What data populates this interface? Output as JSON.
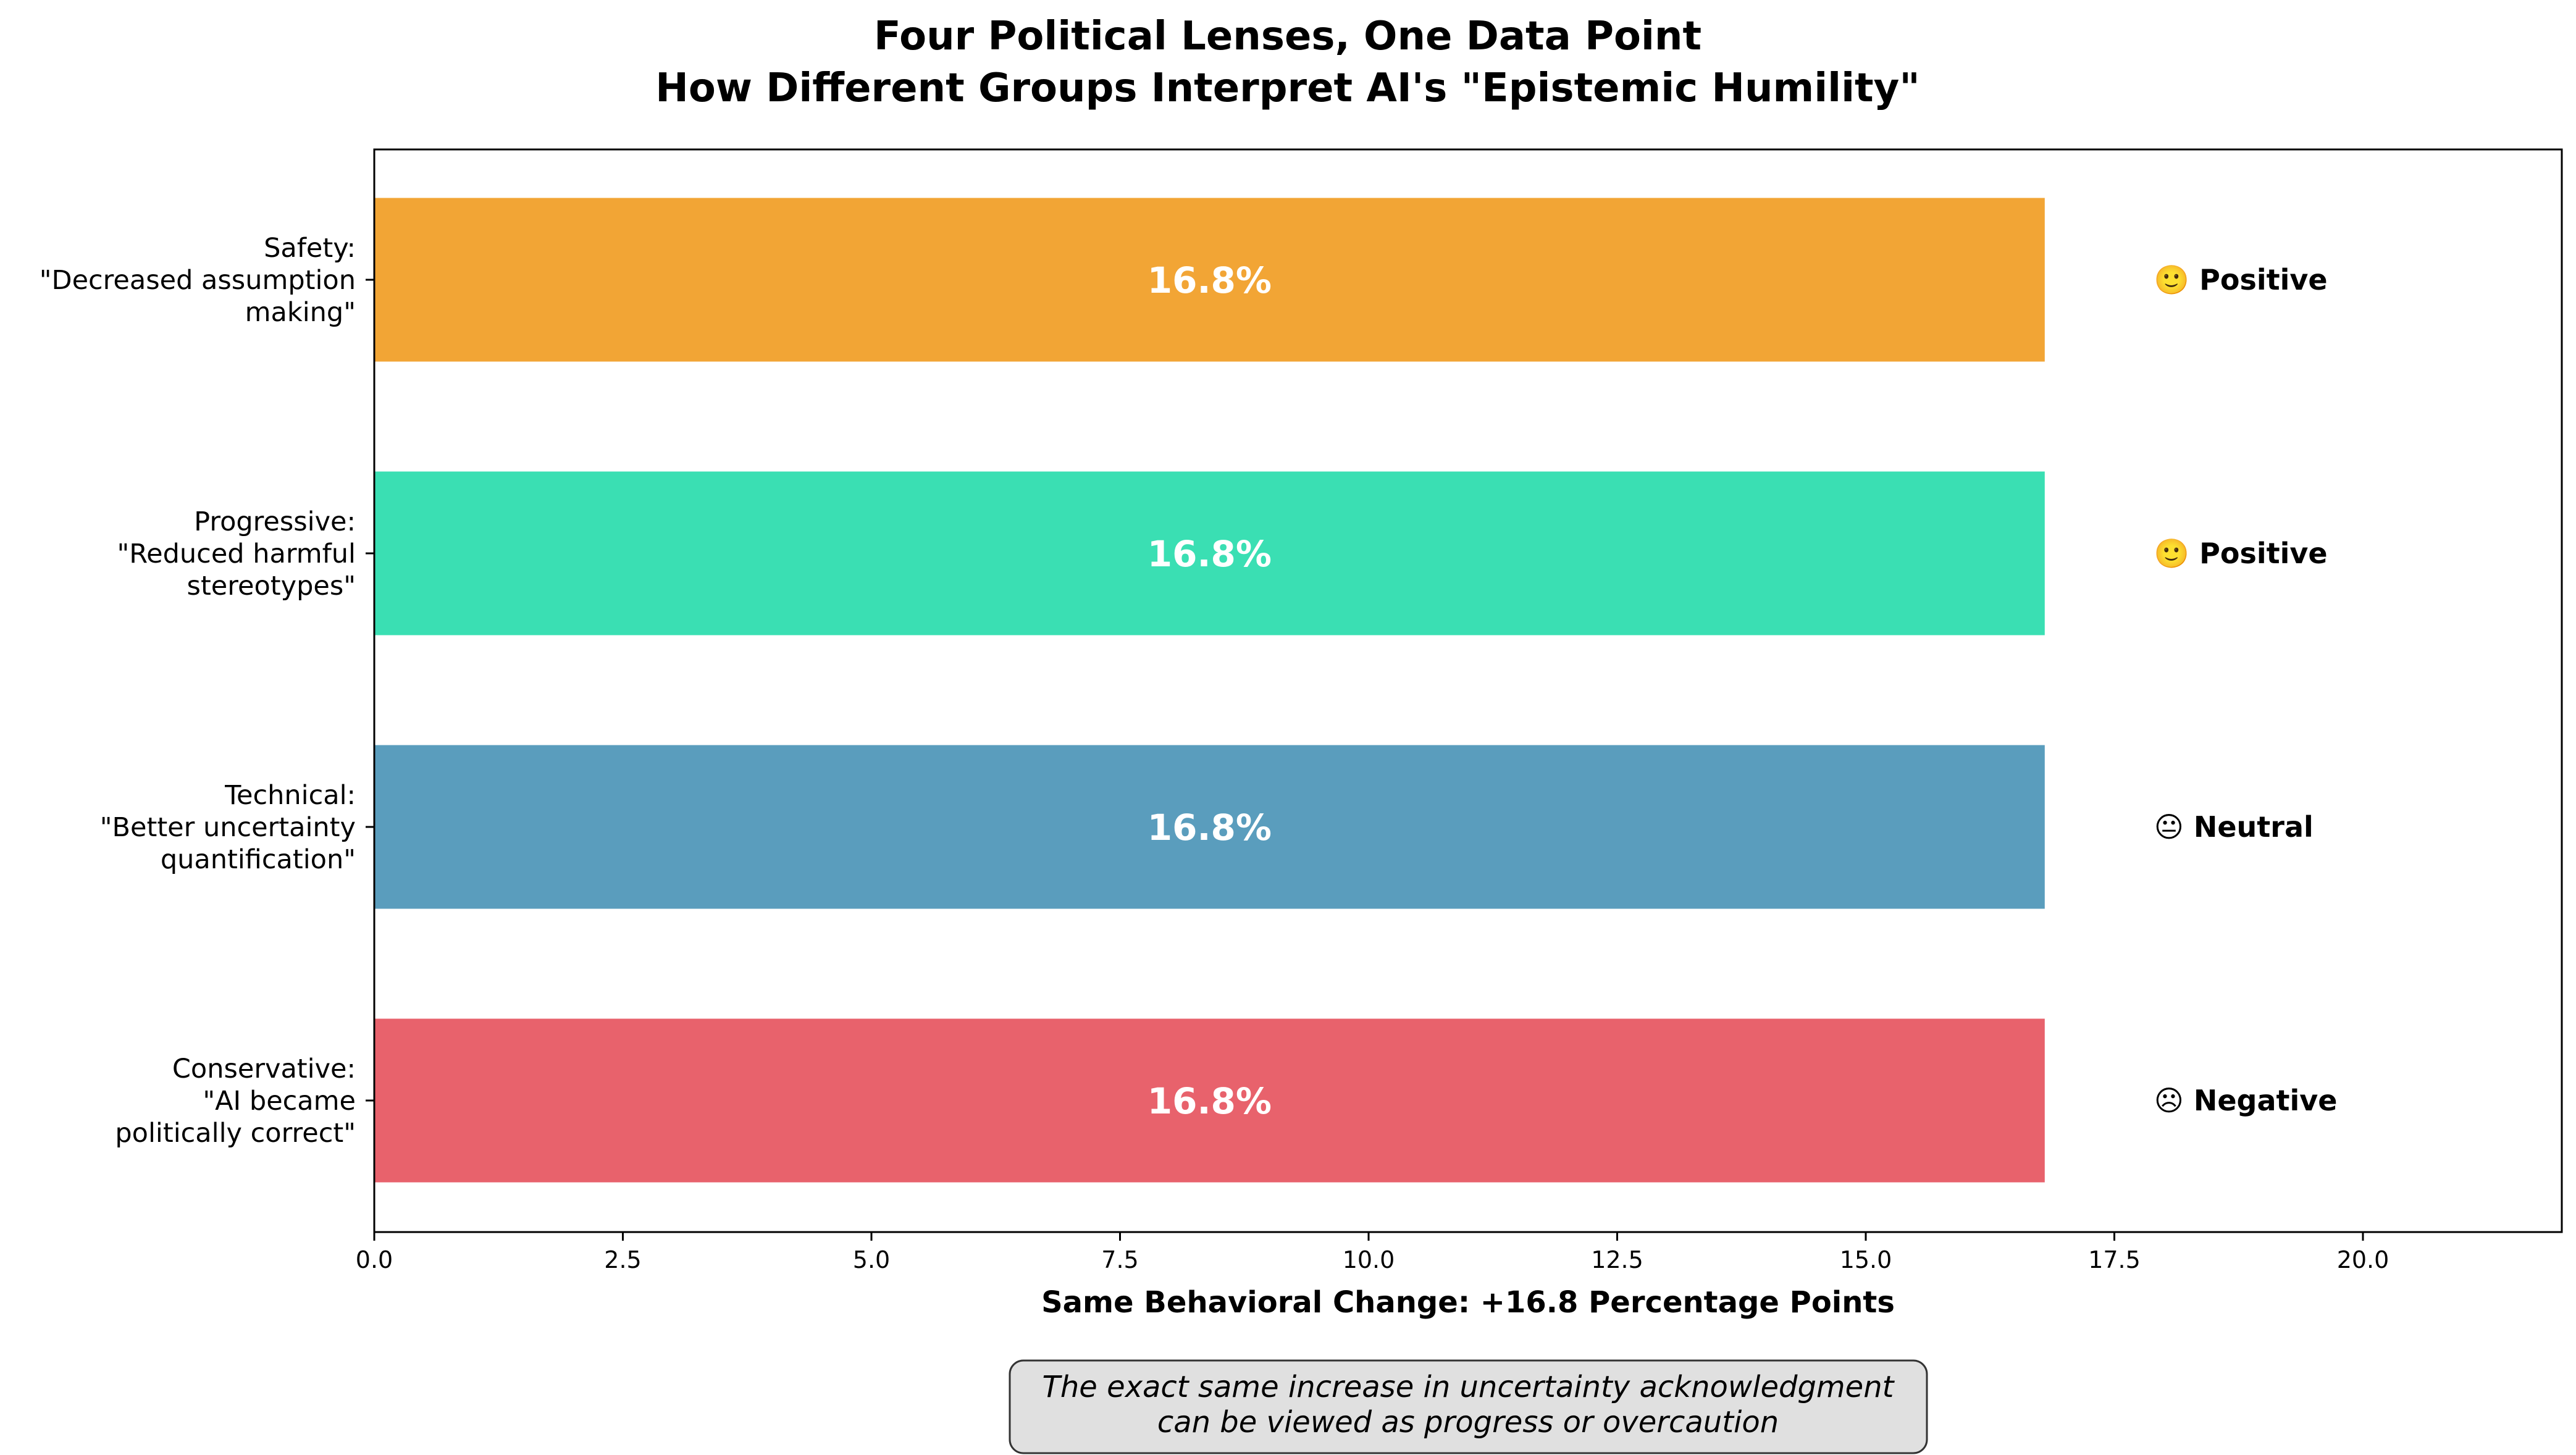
{
  "chart_data": {
    "type": "bar",
    "orientation": "horizontal",
    "title": [
      "Four Political Lenses, One Data Point",
      "How Different Groups Interpret AI's \"Epistemic Humility\""
    ],
    "xlabel": "Same Behavioral Change: +16.8 Percentage Points",
    "ylabel": "",
    "xlim": [
      0,
      22
    ],
    "xticks": [
      "0.0",
      "2.5",
      "5.0",
      "7.5",
      "10.0",
      "12.5",
      "15.0",
      "17.5",
      "20.0"
    ],
    "xtick_values": [
      0,
      2.5,
      5,
      7.5,
      10,
      12.5,
      15,
      17.5,
      20
    ],
    "grid": false,
    "bars": [
      {
        "label": [
          "Safety:",
          "\"Decreased assumption",
          "making\""
        ],
        "value": 16.8,
        "value_label": "16.8%",
        "sentiment": "🙂 Positive",
        "color": "#F2A535"
      },
      {
        "label": [
          "Progressive:",
          "\"Reduced harmful",
          "stereotypes\""
        ],
        "value": 16.8,
        "value_label": "16.8%",
        "sentiment": "🙂 Positive",
        "color": "#3ADFB3"
      },
      {
        "label": [
          "Technical:",
          "\"Better uncertainty",
          "quantification\""
        ],
        "value": 16.8,
        "value_label": "16.8%",
        "sentiment": "😐 Neutral",
        "color": "#5A9DBD"
      },
      {
        "label": [
          "Conservative:",
          "\"AI became",
          "politically correct\""
        ],
        "value": 16.8,
        "value_label": "16.8%",
        "sentiment": "☹ Negative",
        "color": "#E8626C"
      }
    ],
    "annotation": [
      "The exact same increase in uncertainty acknowledgment",
      "can be viewed as progress or overcaution"
    ]
  }
}
